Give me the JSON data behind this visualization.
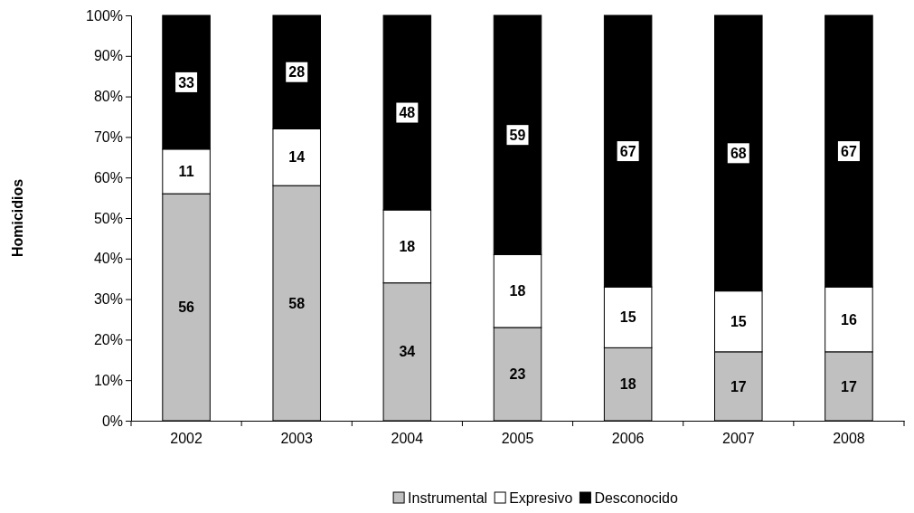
{
  "chart_data": {
    "type": "bar",
    "stacked": true,
    "ylabel": "Homicidios",
    "categories": [
      "2002",
      "2003",
      "2004",
      "2005",
      "2006",
      "2007",
      "2008"
    ],
    "series": [
      {
        "name": "Instrumental",
        "color": "#c0c0c0",
        "values": [
          56,
          58,
          34,
          23,
          18,
          17,
          17
        ]
      },
      {
        "name": "Expresivo",
        "color": "#ffffff",
        "values": [
          11,
          14,
          18,
          18,
          15,
          15,
          16
        ]
      },
      {
        "name": "Desconocido",
        "color": "#000000",
        "values": [
          33,
          28,
          48,
          59,
          67,
          68,
          67
        ]
      }
    ],
    "ylim": [
      0,
      100
    ],
    "yticks": [
      {
        "value": 0,
        "label": "0%"
      },
      {
        "value": 10,
        "label": "10%"
      },
      {
        "value": 20,
        "label": "20%"
      },
      {
        "value": 30,
        "label": "30%"
      },
      {
        "value": 40,
        "label": "40%"
      },
      {
        "value": 50,
        "label": "50%"
      },
      {
        "value": 60,
        "label": "60%"
      },
      {
        "value": 70,
        "label": "70%"
      },
      {
        "value": 80,
        "label": "80%"
      },
      {
        "value": 90,
        "label": "90%"
      },
      {
        "value": 100,
        "label": "100%"
      }
    ],
    "data_labels": true,
    "legend": "bottom",
    "grid": false
  }
}
